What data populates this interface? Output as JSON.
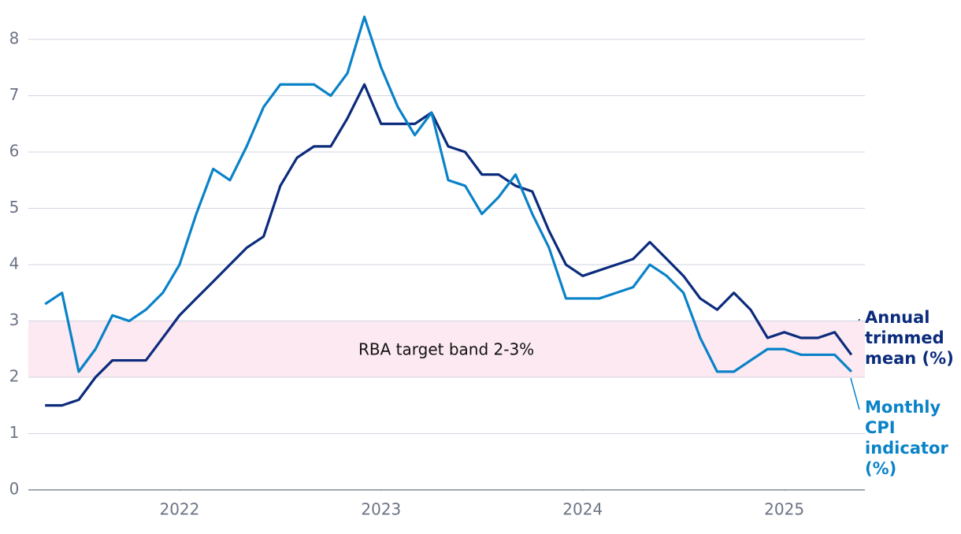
{
  "chart_data": {
    "type": "line",
    "x": [
      2021.333,
      2021.417,
      2021.5,
      2021.583,
      2021.667,
      2021.75,
      2021.833,
      2021.917,
      2022.0,
      2022.083,
      2022.167,
      2022.25,
      2022.333,
      2022.417,
      2022.5,
      2022.583,
      2022.667,
      2022.75,
      2022.833,
      2022.917,
      2023.0,
      2023.083,
      2023.167,
      2023.25,
      2023.333,
      2023.417,
      2023.5,
      2023.583,
      2023.667,
      2023.75,
      2023.833,
      2023.917,
      2024.0,
      2024.083,
      2024.167,
      2024.25,
      2024.333,
      2024.417,
      2024.5,
      2024.583,
      2024.667,
      2024.75,
      2024.833,
      2024.917,
      2025.0,
      2025.083,
      2025.167,
      2025.25,
      2025.333
    ],
    "series": [
      {
        "name": "Annual trimmed mean (%)",
        "color": "#0b2b7c",
        "values": [
          1.5,
          1.5,
          1.6,
          2.0,
          2.3,
          2.3,
          2.3,
          2.7,
          3.1,
          3.4,
          3.7,
          4.0,
          4.3,
          4.5,
          5.4,
          5.9,
          6.1,
          6.1,
          6.6,
          7.2,
          6.5,
          6.5,
          6.5,
          6.7,
          6.1,
          6.0,
          5.6,
          5.6,
          5.4,
          5.3,
          4.6,
          4.0,
          3.8,
          3.9,
          4.0,
          4.1,
          4.4,
          4.1,
          3.8,
          3.4,
          3.2,
          3.5,
          3.2,
          2.7,
          2.8,
          2.7,
          2.7,
          2.8,
          2.4
        ]
      },
      {
        "name": "Monthly CPI indicator (%)",
        "color": "#0a82c8",
        "values": [
          3.3,
          3.5,
          2.1,
          2.5,
          3.1,
          3.0,
          3.2,
          3.5,
          4.0,
          4.9,
          5.7,
          5.5,
          6.1,
          6.8,
          7.2,
          7.2,
          7.2,
          7.0,
          7.4,
          8.4,
          7.5,
          6.8,
          6.3,
          6.7,
          5.5,
          5.4,
          4.9,
          5.2,
          5.6,
          4.9,
          4.3,
          3.4,
          3.4,
          3.4,
          3.5,
          3.6,
          4.0,
          3.8,
          3.5,
          2.7,
          2.1,
          2.1,
          2.3,
          2.5,
          2.5,
          2.4,
          2.4,
          2.4,
          2.1
        ]
      }
    ],
    "band": {
      "label": "RBA target band 2-3%",
      "range": [
        2,
        3
      ],
      "color": "#fce9f1"
    },
    "xlim": [
      2021.25,
      2025.4
    ],
    "xticks": [
      2022,
      2023,
      2024,
      2025
    ],
    "ylim": [
      0,
      8.7
    ],
    "yticks": [
      0,
      1,
      2,
      3,
      4,
      5,
      6,
      7,
      8
    ],
    "grid": true
  }
}
